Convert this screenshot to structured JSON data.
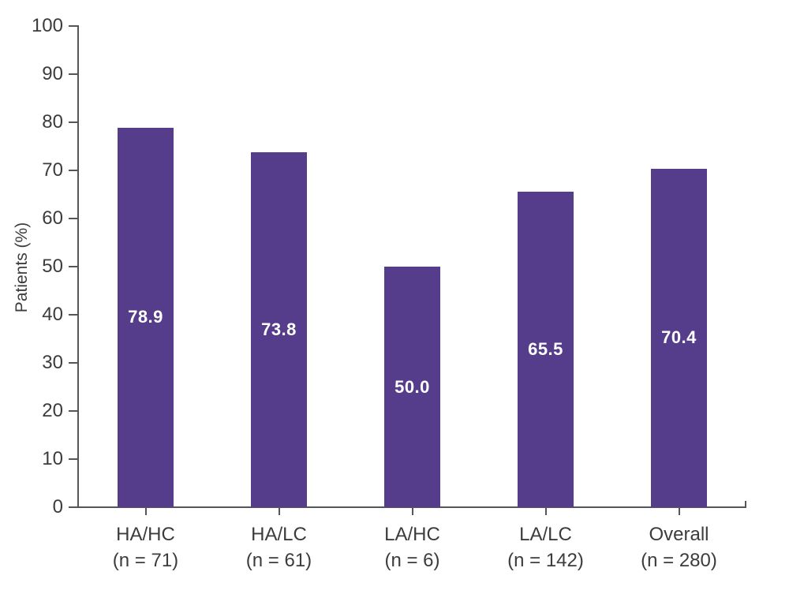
{
  "chart_data": {
    "type": "bar",
    "title": "",
    "xlabel": "",
    "ylabel": "Patients (%)",
    "ylim": [
      0,
      100
    ],
    "ytick_step": 10,
    "yticks": [
      0,
      10,
      20,
      30,
      40,
      50,
      60,
      70,
      80,
      90,
      100
    ],
    "categories": [
      "HA/HC",
      "HA/LC",
      "LA/HC",
      "LA/LC",
      "Overall"
    ],
    "n_labels": [
      "(n = 71)",
      "(n = 61)",
      "(n = 6)",
      "(n = 142)",
      "(n = 280)"
    ],
    "values": [
      78.9,
      73.8,
      50.0,
      65.5,
      70.4
    ],
    "value_labels": [
      "78.9",
      "73.8",
      "50.0",
      "65.5",
      "70.4"
    ],
    "legend": [],
    "grid": false,
    "bar_color": "#563d8b",
    "value_label_color": "#ffffff",
    "axis_color": "#55565a",
    "text_color": "#3c3c3c"
  }
}
